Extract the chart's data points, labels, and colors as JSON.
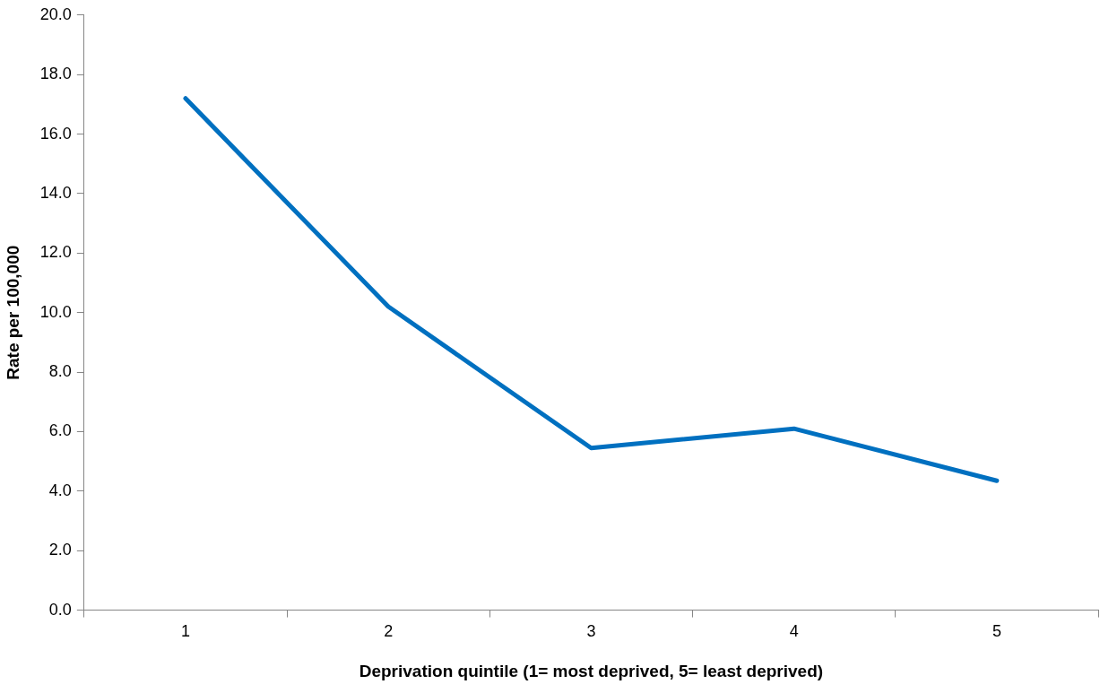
{
  "chart_data": {
    "type": "line",
    "xlabel": "Deprivation quintile (1= most deprived, 5= least deprived)",
    "ylabel": "Rate per 100,000",
    "categories": [
      "1",
      "2",
      "3",
      "4",
      "5"
    ],
    "series": [
      {
        "color": "#0070c0",
        "values": [
          17.2,
          10.2,
          5.45,
          6.1,
          4.35
        ]
      }
    ],
    "ylim": [
      0,
      20
    ],
    "yticks": [
      {
        "value": 0,
        "label": "0.0"
      },
      {
        "value": 2,
        "label": "2.0"
      },
      {
        "value": 4,
        "label": "4.0"
      },
      {
        "value": 6,
        "label": "6.0"
      },
      {
        "value": 8,
        "label": "8.0"
      },
      {
        "value": 10,
        "label": "10.0"
      },
      {
        "value": 12,
        "label": "12.0"
      },
      {
        "value": 14,
        "label": "14.0"
      },
      {
        "value": 16,
        "label": "16.0"
      },
      {
        "value": 18,
        "label": "18.0"
      },
      {
        "value": 20,
        "label": "20.0"
      }
    ],
    "grid": false,
    "legend": false,
    "marker": "none",
    "line_style": "solid"
  }
}
